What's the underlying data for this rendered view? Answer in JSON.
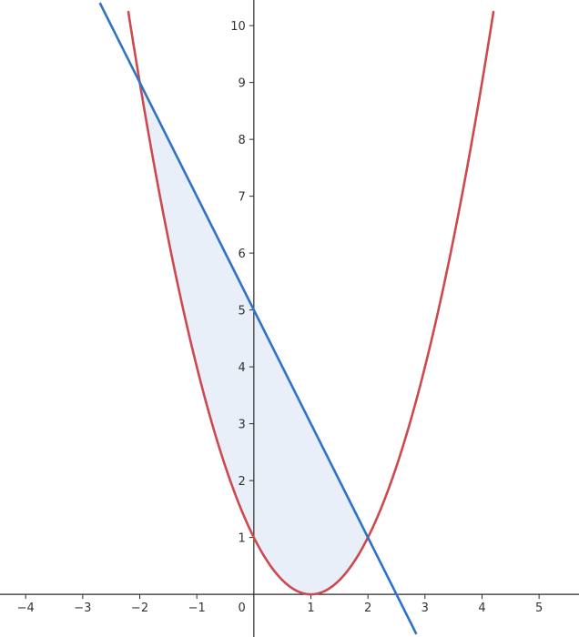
{
  "chart_data": {
    "type": "line",
    "xlim": [
      -4.45,
      5.7
    ],
    "ylim": [
      -0.75,
      10.45
    ],
    "grid": false,
    "x_ticks": [
      {
        "value": -4,
        "label": "−4"
      },
      {
        "value": -3,
        "label": "−3"
      },
      {
        "value": -2,
        "label": "−2"
      },
      {
        "value": -1,
        "label": "−1"
      },
      {
        "value": 1,
        "label": "1"
      },
      {
        "value": 2,
        "label": "2"
      },
      {
        "value": 3,
        "label": "3"
      },
      {
        "value": 4,
        "label": "4"
      },
      {
        "value": 5,
        "label": "5"
      }
    ],
    "y_ticks": [
      {
        "value": 1,
        "label": "1"
      },
      {
        "value": 2,
        "label": "2"
      },
      {
        "value": 3,
        "label": "3"
      },
      {
        "value": 4,
        "label": "4"
      },
      {
        "value": 5,
        "label": "5"
      },
      {
        "value": 6,
        "label": "6"
      },
      {
        "value": 7,
        "label": "7"
      },
      {
        "value": 8,
        "label": "8"
      },
      {
        "value": 9,
        "label": "9"
      },
      {
        "value": 10,
        "label": "10"
      }
    ],
    "origin_label": "0",
    "series": [
      {
        "kind": "parabola",
        "formula": "y = (x - 1)^2",
        "color": "#cc4a4f",
        "x": [
          -2.2,
          -2,
          -1.5,
          -1,
          -0.5,
          0,
          0.5,
          1,
          1.5,
          2,
          2.5,
          3,
          3.5,
          4,
          4.2
        ],
        "y": [
          10.24,
          9,
          6.25,
          4,
          2.25,
          1,
          0.25,
          0,
          0.25,
          1,
          2.25,
          4,
          6.25,
          9,
          10.24
        ]
      },
      {
        "kind": "line",
        "formula": "y = -2x + 5",
        "color": "#2f73c4",
        "x": [
          -2.7,
          2.85
        ],
        "y": [
          10.4,
          -0.7
        ]
      }
    ],
    "shaded_region": {
      "between": "y = -2x + 5 (upper) and y = (x - 1)^2 (lower)",
      "x_range": [
        -2,
        2
      ],
      "fill_color": "#e8eff9"
    },
    "intersections": [
      {
        "x": -2,
        "y": 9
      },
      {
        "x": 2,
        "y": 1
      }
    ]
  }
}
